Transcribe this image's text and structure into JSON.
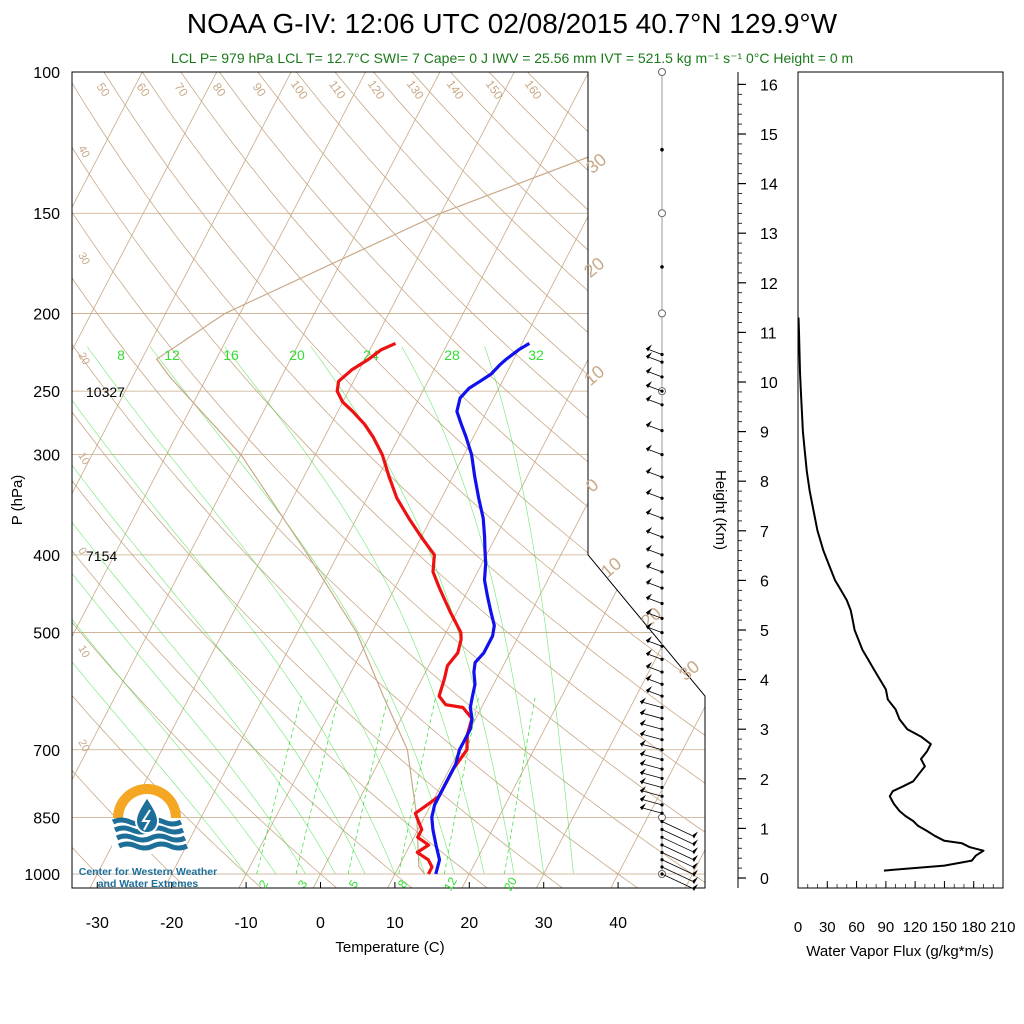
{
  "title": "NOAA G-IV: 12:06 UTC 02/08/2015  40.7°N 129.9°W",
  "subtitle": "LCL P= 979 hPa  LCL T= 12.7°C  SWI= 7  Cape= 0 J  IWV = 25.56 mm  IVT = 521.5 kg m⁻¹ s⁻¹  0°C Height = 0 m",
  "logo": {
    "icon": "water-drop-sun-icon",
    "text_line1": "Center for Western Weather",
    "text_line2": "and Water Extremes",
    "colors": {
      "sun": "#f5a623",
      "water": "#1d6f9a"
    }
  },
  "chart_data": [
    {
      "type": "line",
      "subtype": "skew-t log-p sounding",
      "xlabel": "Temperature (C)",
      "ylabel": "P (hPa)",
      "x_ticks": [
        "-30",
        "-20",
        "-10",
        "0",
        "10",
        "20",
        "30",
        "40"
      ],
      "y_ticks": [
        "100",
        "150",
        "200",
        "250",
        "300",
        "400",
        "500",
        "700",
        "850",
        "1000"
      ],
      "ylim": [
        1000,
        100
      ],
      "y_scale": "log",
      "annotations": [
        {
          "text": "10327",
          "pressure": 250
        },
        {
          "text": "7154",
          "pressure": 400
        }
      ],
      "dry_adiabat_labels": [
        "50",
        "60",
        "70",
        "80",
        "90",
        "100",
        "110",
        "120",
        "130",
        "140",
        "150",
        "160"
      ],
      "side_isotherm_labels_left": [
        "40",
        "30",
        "20",
        "10",
        "0",
        "10",
        "20"
      ],
      "side_labels_right": [
        "30",
        "20",
        "10",
        "0",
        "10",
        "20",
        "30"
      ],
      "mixing_ratio_labels_top": [
        "8",
        "12",
        "16",
        "20",
        "24",
        "28",
        "32"
      ],
      "mixing_ratio_labels_bottom": [
        "2",
        "3",
        "5",
        "8",
        "12",
        "20"
      ],
      "colors": {
        "temperature": "#ee1111",
        "dewpoint_blue": "#1111ee",
        "isopleth": "#c8a988",
        "moist": "#33dd33",
        "parcel": "#c8a988"
      },
      "series": [
        {
          "name": "",
          "color": "#ee1111",
          "points": [
            [
              14.5,
              1000
            ],
            [
              14.5,
              980
            ],
            [
              13.5,
              960
            ],
            [
              11.5,
              940
            ],
            [
              12.5,
              920
            ],
            [
              10.5,
              900
            ],
            [
              10.5,
              880
            ],
            [
              9.5,
              860
            ],
            [
              8.5,
              840
            ],
            [
              9.5,
              820
            ],
            [
              10.5,
              800
            ],
            [
              10.5,
              770
            ],
            [
              10.5,
              740
            ],
            [
              11.0,
              700
            ],
            [
              10.0,
              670
            ],
            [
              9.5,
              640
            ],
            [
              7.5,
              620
            ],
            [
              5.0,
              615
            ],
            [
              3.5,
              600
            ],
            [
              3.0,
              570
            ],
            [
              2.5,
              550
            ],
            [
              3.0,
              530
            ],
            [
              2.5,
              510
            ],
            [
              2.0,
              500
            ],
            [
              -1.0,
              470
            ],
            [
              -4.0,
              440
            ],
            [
              -6.0,
              420
            ],
            [
              -7.0,
              400
            ],
            [
              -10.0,
              380
            ],
            [
              -13.0,
              360
            ],
            [
              -16.0,
              340
            ],
            [
              -18.5,
              320
            ],
            [
              -21.0,
              300
            ],
            [
              -23.5,
              285
            ],
            [
              -25.5,
              275
            ],
            [
              -28.0,
              265
            ],
            [
              -30.0,
              258
            ],
            [
              -31.5,
              250
            ],
            [
              -32.0,
              243
            ],
            [
              -31.0,
              235
            ],
            [
              -29.5,
              228
            ],
            [
              -28.5,
              222
            ],
            [
              -27.0,
              218
            ]
          ]
        },
        {
          "name": "",
          "color": "#1111ee",
          "points": [
            [
              15.5,
              1000
            ],
            [
              15.0,
              960
            ],
            [
              13.5,
              920
            ],
            [
              12.0,
              880
            ],
            [
              11.0,
              850
            ],
            [
              10.5,
              820
            ],
            [
              10.5,
              790
            ],
            [
              10.5,
              760
            ],
            [
              10.5,
              730
            ],
            [
              10.0,
              700
            ],
            [
              10.0,
              680
            ],
            [
              10.0,
              660
            ],
            [
              9.5,
              640
            ],
            [
              8.5,
              620
            ],
            [
              8.0,
              600
            ],
            [
              7.5,
              580
            ],
            [
              6.5,
              560
            ],
            [
              6.0,
              545
            ],
            [
              6.5,
              530
            ],
            [
              6.5,
              515
            ],
            [
              6.5,
              505
            ],
            [
              6.0,
              490
            ],
            [
              4.5,
              470
            ],
            [
              3.0,
              450
            ],
            [
              1.5,
              430
            ],
            [
              0.5,
              410
            ],
            [
              -0.5,
              395
            ],
            [
              -1.5,
              380
            ],
            [
              -3.0,
              360
            ],
            [
              -5.0,
              340
            ],
            [
              -7.0,
              320
            ],
            [
              -9.0,
              300
            ],
            [
              -11.0,
              285
            ],
            [
              -12.5,
              275
            ],
            [
              -14.0,
              265
            ],
            [
              -14.5,
              255
            ],
            [
              -14.0,
              248
            ],
            [
              -13.0,
              243
            ],
            [
              -12.0,
              238
            ],
            [
              -11.5,
              232
            ],
            [
              -11.0,
              228
            ],
            [
              -10.0,
              222
            ],
            [
              -9.0,
              218
            ]
          ]
        }
      ]
    },
    {
      "type": "line",
      "xlabel": "Water Vapor Flux (g/kg*m/s)",
      "ylabel": "Height (Km)",
      "x_ticks": [
        "0",
        "30",
        "60",
        "90",
        "120",
        "150",
        "180",
        "210"
      ],
      "y_ticks": [
        "0",
        "1",
        "2",
        "3",
        "4",
        "5",
        "6",
        "7",
        "8",
        "9",
        "10",
        "11",
        "12",
        "13",
        "14",
        "15",
        "16"
      ],
      "xlim": [
        0,
        210
      ],
      "ylim": [
        -0.2,
        16.3
      ],
      "series": [
        {
          "name": "",
          "color": "#000000",
          "points": [
            [
              88,
              0.15
            ],
            [
              150,
              0.25
            ],
            [
              178,
              0.35
            ],
            [
              182,
              0.45
            ],
            [
              186,
              0.5
            ],
            [
              190,
              0.55
            ],
            [
              176,
              0.62
            ],
            [
              168,
              0.7
            ],
            [
              150,
              0.75
            ],
            [
              140,
              0.85
            ],
            [
              132,
              0.95
            ],
            [
              123,
              1.05
            ],
            [
              118,
              1.15
            ],
            [
              110,
              1.25
            ],
            [
              104,
              1.35
            ],
            [
              98,
              1.5
            ],
            [
              94,
              1.65
            ],
            [
              97,
              1.75
            ],
            [
              108,
              1.85
            ],
            [
              118,
              1.95
            ],
            [
              124,
              2.1
            ],
            [
              130,
              2.25
            ],
            [
              126,
              2.4
            ],
            [
              132,
              2.55
            ],
            [
              136,
              2.7
            ],
            [
              126,
              2.85
            ],
            [
              112,
              3.0
            ],
            [
              104,
              3.2
            ],
            [
              100,
              3.4
            ],
            [
              92,
              3.6
            ],
            [
              90,
              3.8
            ],
            [
              84,
              4.0
            ],
            [
              78,
              4.2
            ],
            [
              72,
              4.4
            ],
            [
              66,
              4.6
            ],
            [
              62,
              4.8
            ],
            [
              58,
              5.0
            ],
            [
              56,
              5.2
            ],
            [
              54,
              5.4
            ],
            [
              50,
              5.6
            ],
            [
              44,
              5.8
            ],
            [
              38,
              6.0
            ],
            [
              32,
              6.3
            ],
            [
              26,
              6.6
            ],
            [
              20,
              7.0
            ],
            [
              16,
              7.4
            ],
            [
              12,
              7.8
            ],
            [
              9,
              8.2
            ],
            [
              7,
              8.6
            ],
            [
              5,
              9.0
            ],
            [
              4,
              9.4
            ],
            [
              3,
              9.8
            ],
            [
              2,
              10.2
            ],
            [
              1.5,
              10.6
            ],
            [
              1,
              11.0
            ],
            [
              0.5,
              11.3
            ]
          ]
        }
      ]
    }
  ],
  "wind_barbs_pressures": [
    1000,
    980,
    960,
    940,
    920,
    900,
    880,
    860,
    840,
    820,
    800,
    780,
    760,
    740,
    720,
    700,
    680,
    660,
    640,
    620,
    600,
    580,
    560,
    540,
    520,
    500,
    480,
    460,
    440,
    420,
    400,
    380,
    360,
    340,
    320,
    300,
    280,
    260,
    250,
    240,
    230,
    225
  ]
}
